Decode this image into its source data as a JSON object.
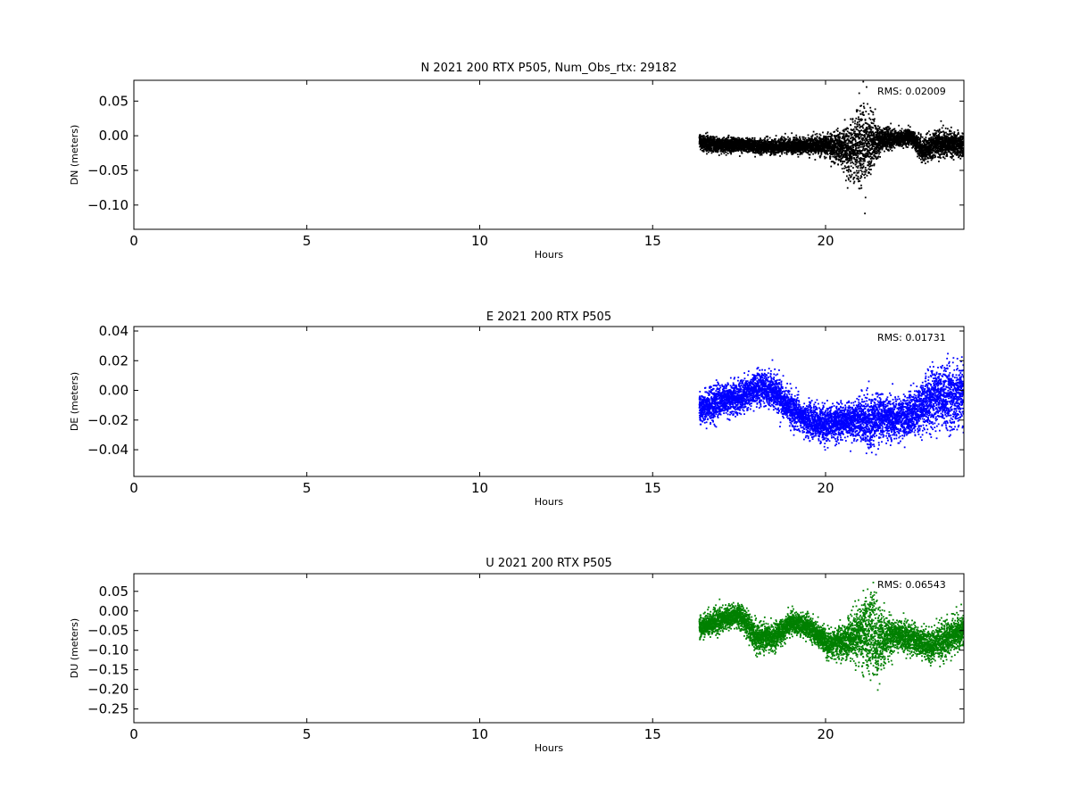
{
  "figure": {
    "background": "#ffffff"
  },
  "chart_data": [
    {
      "type": "scatter",
      "title": "N 2021 200 RTX  P505, Num_Obs_rtx: 29182",
      "xlabel": "Hours",
      "ylabel": "DN (meters)",
      "xlim": [
        0,
        24
      ],
      "ylim": [
        -0.135,
        0.08
      ],
      "x_ticks": [
        0,
        5,
        10,
        15,
        20
      ],
      "y_ticks": [
        0.05,
        0.0,
        -0.05,
        -0.1
      ],
      "y_tick_labels": [
        "0.05",
        "0.00",
        "−0.05",
        "−0.10"
      ],
      "annotation": "RMS:  0.02009",
      "annotation_color": "#0000ff",
      "color": "#000000",
      "series": [
        {
          "x": [
            16.35,
            16.6,
            17.0,
            17.5,
            18.0,
            18.5,
            19.0,
            19.5,
            20.0,
            20.4,
            20.7,
            20.9,
            21.1,
            21.3,
            21.6,
            22.0,
            22.5,
            22.8,
            23.2,
            23.6,
            24.0
          ],
          "center": [
            -0.008,
            -0.012,
            -0.014,
            -0.013,
            -0.015,
            -0.016,
            -0.015,
            -0.014,
            -0.014,
            -0.018,
            -0.02,
            -0.016,
            -0.012,
            -0.01,
            -0.006,
            -0.004,
            -0.002,
            -0.022,
            -0.012,
            -0.012,
            -0.016
          ],
          "spread": [
            0.012,
            0.012,
            0.011,
            0.011,
            0.011,
            0.011,
            0.012,
            0.012,
            0.016,
            0.024,
            0.04,
            0.06,
            0.07,
            0.045,
            0.02,
            0.014,
            0.012,
            0.018,
            0.022,
            0.02,
            0.018
          ]
        }
      ]
    },
    {
      "type": "scatter",
      "title": "E 2021 200 RTX  P505",
      "xlabel": "Hours",
      "ylabel": "DE (meters)",
      "xlim": [
        0,
        24
      ],
      "ylim": [
        -0.058,
        0.043
      ],
      "x_ticks": [
        0,
        5,
        10,
        15,
        20
      ],
      "y_ticks": [
        0.04,
        0.02,
        0.0,
        -0.02,
        -0.04
      ],
      "y_tick_labels": [
        "0.04",
        "0.02",
        "0.00",
        "−0.02",
        "−0.04"
      ],
      "annotation": "RMS:  0.01731",
      "annotation_color": "#0000ff",
      "color": "#0000ff",
      "series": [
        {
          "x": [
            16.35,
            16.6,
            17.0,
            17.5,
            18.0,
            18.5,
            19.0,
            19.5,
            20.0,
            20.5,
            21.0,
            21.3,
            21.6,
            22.0,
            22.5,
            23.0,
            23.5,
            24.0
          ],
          "center": [
            -0.012,
            -0.01,
            -0.006,
            -0.005,
            0.002,
            0.0,
            -0.012,
            -0.02,
            -0.024,
            -0.02,
            -0.02,
            -0.022,
            -0.018,
            -0.02,
            -0.016,
            -0.006,
            -0.004,
            -0.002
          ],
          "spread": [
            0.01,
            0.012,
            0.011,
            0.011,
            0.012,
            0.013,
            0.012,
            0.012,
            0.012,
            0.012,
            0.016,
            0.02,
            0.016,
            0.014,
            0.016,
            0.02,
            0.024,
            0.022
          ]
        }
      ]
    },
    {
      "type": "scatter",
      "title": "U 2021 200 RTX  P505",
      "xlabel": "Hours",
      "ylabel": "DU (meters)",
      "xlim": [
        0,
        24
      ],
      "ylim": [
        -0.285,
        0.095
      ],
      "x_ticks": [
        0,
        5,
        10,
        15,
        20
      ],
      "y_ticks": [
        0.05,
        0.0,
        -0.05,
        -0.1,
        -0.15,
        -0.2,
        -0.25
      ],
      "y_tick_labels": [
        "0.05",
        "0.00",
        "−0.05",
        "−0.10",
        "−0.15",
        "−0.20",
        "−0.25"
      ],
      "annotation": "RMS:  0.06543",
      "annotation_color": "#0000ff",
      "color": "#008000",
      "series": [
        {
          "x": [
            16.35,
            16.6,
            17.0,
            17.5,
            18.0,
            18.5,
            19.0,
            19.5,
            20.0,
            20.5,
            21.0,
            21.3,
            21.6,
            22.0,
            22.5,
            23.0,
            23.5,
            24.0
          ],
          "center": [
            -0.045,
            -0.035,
            -0.02,
            -0.01,
            -0.065,
            -0.07,
            -0.03,
            -0.04,
            -0.08,
            -0.08,
            -0.06,
            -0.05,
            -0.08,
            -0.06,
            -0.07,
            -0.09,
            -0.07,
            -0.05
          ],
          "spread": [
            0.03,
            0.03,
            0.03,
            0.03,
            0.04,
            0.035,
            0.03,
            0.03,
            0.035,
            0.04,
            0.08,
            0.12,
            0.09,
            0.04,
            0.04,
            0.04,
            0.05,
            0.04
          ]
        }
      ]
    }
  ]
}
